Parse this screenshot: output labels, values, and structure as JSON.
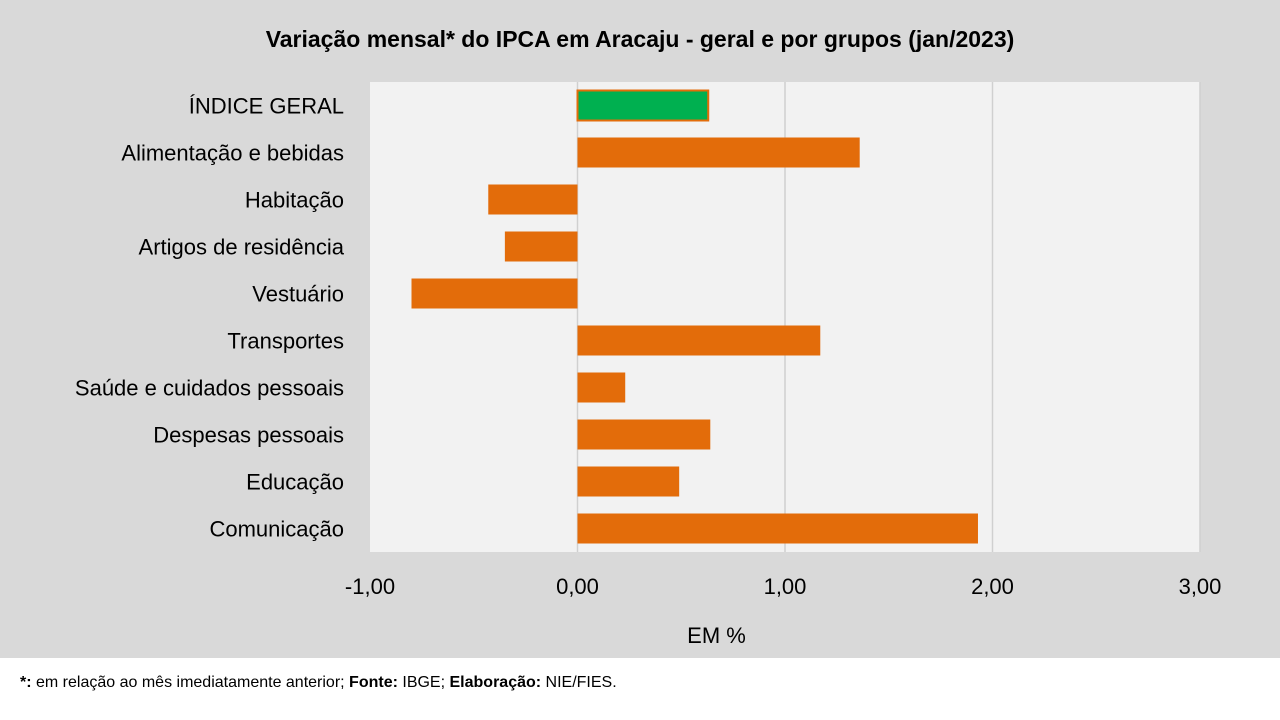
{
  "chart_data": {
    "type": "bar",
    "orientation": "horizontal",
    "title": "Variação  mensal*  do IPCA em Aracaju  - geral e por grupos  (jan/2023)",
    "xlabel": "EM %",
    "ylabel": "",
    "xlim": [
      -1,
      3
    ],
    "xticks": [
      -1,
      0,
      1,
      2,
      3
    ],
    "xtick_labels": [
      "-1,00",
      "0,00",
      "1,00",
      "2,00",
      "3,00"
    ],
    "grid": true,
    "categories": [
      "ÍNDICE GERAL",
      "Alimentação e bebidas",
      "Habitação",
      "Artigos de residência",
      "Vestuário",
      "Transportes",
      "Saúde e cuidados pessoais",
      "Despesas pessoais",
      "Educação",
      "Comunicação"
    ],
    "values": [
      0.63,
      1.36,
      -0.43,
      -0.35,
      -0.8,
      1.17,
      0.23,
      0.64,
      0.49,
      1.93
    ],
    "colors": {
      "highlight": "#00b050",
      "bar": "#e36c0a",
      "plot_bg": "#f2f2f2",
      "grid": "#d0d0d0"
    }
  },
  "footer": {
    "note_label": "*:",
    "note_text": " em relação ao mês imediatamente  anterior; ",
    "source_label": "Fonte:",
    "source_text": " IBGE; ",
    "elab_label": "Elaboração:",
    "elab_text": " NIE/FIES."
  }
}
